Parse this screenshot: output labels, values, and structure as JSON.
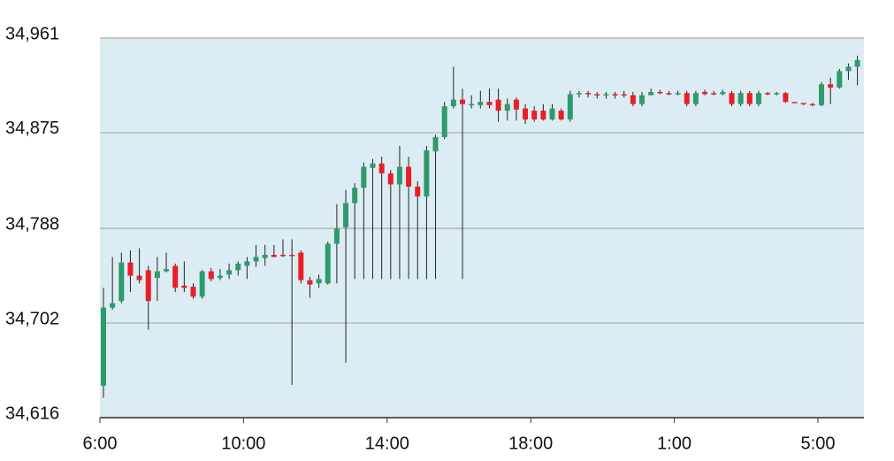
{
  "chart_data": {
    "type": "candlestick",
    "categories": [
      "6:00",
      null,
      null,
      null,
      null,
      null,
      null,
      null,
      null,
      null,
      null,
      null,
      null,
      null,
      null,
      null,
      "10:00",
      null,
      null,
      null,
      null,
      null,
      null,
      null,
      null,
      null,
      null,
      null,
      null,
      null,
      null,
      null,
      "14:00",
      null,
      null,
      null,
      null,
      null,
      null,
      null,
      null,
      null,
      null,
      null,
      null,
      null,
      null,
      null,
      "18:00",
      null,
      null,
      null,
      null,
      null,
      null,
      null,
      null,
      null,
      null,
      null,
      null,
      null,
      null,
      null,
      "1:00",
      null,
      null,
      null,
      null,
      null,
      null,
      null,
      null,
      null,
      null,
      null,
      null,
      null,
      null,
      null,
      "5:00",
      null,
      null,
      null,
      null
    ],
    "open": [
      34645,
      34716,
      34722,
      34757,
      34745,
      34750,
      34743,
      34749,
      34754,
      34736,
      34735,
      34726,
      34749,
      34743,
      34746,
      34750,
      34754,
      34758,
      34761,
      34764,
      34764,
      34764,
      34766,
      34741,
      34738,
      34738,
      34774,
      34789,
      34811,
      34825,
      34843,
      34847,
      34838,
      34828,
      34844,
      34826,
      34817,
      34858,
      34871,
      34899,
      34905,
      34900,
      34900,
      34903,
      34905,
      34895,
      34905,
      34897,
      34895,
      34895,
      34887,
      34895,
      34887,
      34910,
      34911,
      34910,
      34909,
      34910,
      34910,
      34909,
      34901,
      34909,
      34912,
      34911,
      34910,
      34911,
      34901,
      34912,
      34911,
      34910,
      34911,
      34901,
      34911,
      34901,
      34911,
      34910,
      34911,
      34903,
      34902,
      34901,
      34900,
      34919,
      34916,
      34931,
      34935
    ],
    "high": [
      34734,
      34762,
      34766,
      34768,
      34770,
      34754,
      34762,
      34766,
      34756,
      34758,
      34738,
      34750,
      34752,
      34751,
      34756,
      34758,
      34762,
      34773,
      34773,
      34773,
      34778,
      34778,
      34768,
      34744,
      34746,
      34776,
      34810,
      34823,
      34829,
      34848,
      34851,
      34853,
      34841,
      34863,
      34853,
      34831,
      34863,
      34873,
      34903,
      34935,
      34915,
      34909,
      34913,
      34915,
      34915,
      34906,
      34907,
      34901,
      34899,
      34901,
      34901,
      34897,
      34913,
      34913,
      34913,
      34912,
      34912,
      34912,
      34913,
      34912,
      34912,
      34915,
      34914,
      34913,
      34913,
      34913,
      34913,
      34914,
      34913,
      34914,
      34913,
      34913,
      34913,
      34913,
      34912,
      34912,
      34912,
      34903,
      34902,
      34902,
      34921,
      34925,
      34933,
      34938,
      34945
    ],
    "low": [
      34634,
      34714,
      34720,
      34730,
      34738,
      34696,
      34722,
      34748,
      34730,
      34730,
      34724,
      34724,
      34740,
      34741,
      34742,
      34745,
      34742,
      34753,
      34754,
      34762,
      34762,
      34646,
      34738,
      34725,
      34734,
      34737,
      34738,
      34666,
      34742,
      34742,
      34742,
      34742,
      34742,
      34742,
      34742,
      34742,
      34742,
      34742,
      34869,
      34897,
      34742,
      34897,
      34897,
      34897,
      34885,
      34886,
      34886,
      34883,
      34885,
      34886,
      34886,
      34886,
      34885,
      34907,
      34907,
      34906,
      34906,
      34906,
      34907,
      34899,
      34899,
      34910,
      34910,
      34909,
      34909,
      34899,
      34899,
      34909,
      34909,
      34909,
      34899,
      34899,
      34899,
      34899,
      34909,
      34909,
      34902,
      34902,
      34900,
      34899,
      34899,
      34901,
      34915,
      34923,
      34918
    ],
    "close": [
      34716,
      34720,
      34757,
      34745,
      34741,
      34722,
      34749,
      34751,
      34734,
      34734,
      34726,
      34749,
      34742,
      34745,
      34750,
      34756,
      34758,
      34762,
      34764,
      34762,
      34763,
      34763,
      34741,
      34737,
      34742,
      34774,
      34788,
      34811,
      34825,
      34844,
      34847,
      34838,
      34828,
      34844,
      34826,
      34817,
      34859,
      34871,
      34899,
      34905,
      34901,
      34901,
      34903,
      34900,
      34895,
      34901,
      34896,
      34887,
      34887,
      34887,
      34897,
      34887,
      34910,
      34911,
      34910,
      34909,
      34910,
      34909,
      34909,
      34901,
      34909,
      34912,
      34911,
      34910,
      34911,
      34901,
      34911,
      34910,
      34910,
      34912,
      34901,
      34911,
      34901,
      34911,
      34910,
      34911,
      34903,
      34902,
      34901,
      34900,
      34919,
      34916,
      34931,
      34935,
      34941
    ],
    "up_color": "#2f9a6b",
    "down_color": "#ee1c25",
    "wick_color": "#222222",
    "ylim": [
      34616,
      34961
    ],
    "yticks": [
      {
        "value": 34616,
        "label": "34,616"
      },
      {
        "value": 34702,
        "label": "34,702"
      },
      {
        "value": 34788,
        "label": "34,788"
      },
      {
        "value": 34875,
        "label": "34,875"
      },
      {
        "value": 34961,
        "label": "34,961"
      }
    ],
    "grid": true
  }
}
